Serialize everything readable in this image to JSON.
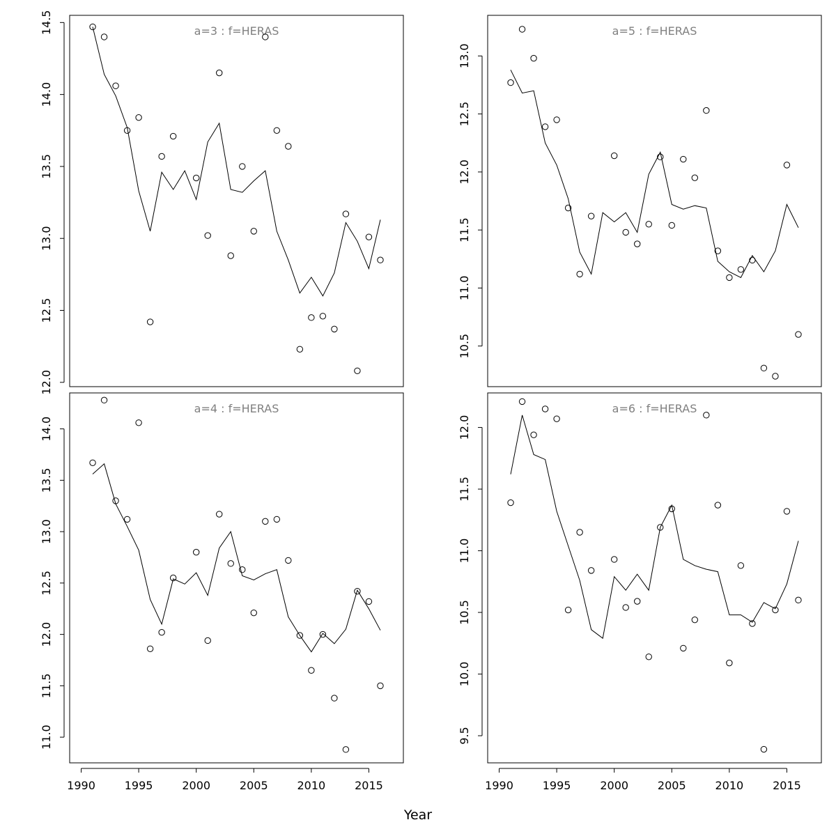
{
  "xlabel": "Year",
  "x_ticks": [
    1990,
    1995,
    2000,
    2005,
    2010,
    2015
  ],
  "chart_data": [
    {
      "type": "scatter",
      "title": "a=3  :  f=HERAS",
      "xlim": [
        1989,
        2018
      ],
      "ylim": [
        11.97,
        14.55
      ],
      "y_ticks": [
        12.0,
        12.5,
        13.0,
        13.5,
        14.0,
        14.5
      ],
      "x": [
        1991,
        1992,
        1993,
        1994,
        1995,
        1996,
        1997,
        1998,
        1999,
        2000,
        2001,
        2002,
        2003,
        2004,
        2005,
        2006,
        2007,
        2008,
        2009,
        2010,
        2011,
        2012,
        2013,
        2014,
        2015,
        2016
      ],
      "points": [
        14.47,
        14.4,
        14.06,
        13.75,
        13.84,
        12.42,
        13.57,
        13.71,
        null,
        13.42,
        13.02,
        14.15,
        12.88,
        13.5,
        13.05,
        14.4,
        13.75,
        13.64,
        12.23,
        12.45,
        12.46,
        12.37,
        13.17,
        12.08,
        13.01,
        12.85
      ],
      "fitted": [
        14.47,
        14.14,
        13.99,
        13.77,
        13.33,
        13.05,
        13.46,
        13.34,
        13.47,
        13.27,
        13.67,
        13.8,
        13.34,
        13.32,
        13.4,
        13.47,
        13.05,
        12.85,
        12.62,
        12.73,
        12.6,
        12.76,
        13.11,
        12.98,
        12.79,
        13.13
      ]
    },
    {
      "type": "scatter",
      "title": "a=5  :  f=HERAS",
      "xlim": [
        1989,
        2018
      ],
      "ylim": [
        10.15,
        13.35
      ],
      "y_ticks": [
        10.5,
        11.0,
        11.5,
        12.0,
        12.5,
        13.0
      ],
      "x": [
        1991,
        1992,
        1993,
        1994,
        1995,
        1996,
        1997,
        1998,
        1999,
        2000,
        2001,
        2002,
        2003,
        2004,
        2005,
        2006,
        2007,
        2008,
        2009,
        2010,
        2011,
        2012,
        2013,
        2014,
        2015,
        2016
      ],
      "points": [
        12.77,
        13.23,
        12.98,
        12.39,
        12.45,
        11.69,
        11.12,
        11.62,
        null,
        12.14,
        11.48,
        11.38,
        11.55,
        12.13,
        11.54,
        12.11,
        11.95,
        12.53,
        11.32,
        11.09,
        11.16,
        11.24,
        10.31,
        10.24,
        12.06,
        10.6
      ],
      "fitted": [
        12.88,
        12.68,
        12.7,
        12.25,
        12.06,
        11.77,
        11.31,
        11.12,
        11.65,
        11.57,
        11.65,
        11.48,
        11.98,
        12.17,
        11.72,
        11.68,
        11.71,
        11.69,
        11.23,
        11.14,
        11.09,
        11.28,
        11.14,
        11.32,
        11.72,
        11.52
      ]
    },
    {
      "type": "scatter",
      "title": "a=4  :  f=HERAS",
      "xlim": [
        1989,
        2018
      ],
      "ylim": [
        10.75,
        14.35
      ],
      "y_ticks": [
        11.0,
        11.5,
        12.0,
        12.5,
        13.0,
        13.5,
        14.0
      ],
      "x": [
        1991,
        1992,
        1993,
        1994,
        1995,
        1996,
        1997,
        1998,
        1999,
        2000,
        2001,
        2002,
        2003,
        2004,
        2005,
        2006,
        2007,
        2008,
        2009,
        2010,
        2011,
        2012,
        2013,
        2014,
        2015,
        2016
      ],
      "points": [
        13.67,
        14.28,
        13.3,
        13.12,
        14.06,
        11.86,
        12.02,
        12.55,
        null,
        12.8,
        11.94,
        13.17,
        12.69,
        12.63,
        12.21,
        13.1,
        13.12,
        12.72,
        11.99,
        11.65,
        12.0,
        11.38,
        10.88,
        12.42,
        12.32,
        11.5
      ],
      "fitted": [
        13.56,
        13.66,
        13.27,
        13.05,
        12.82,
        12.34,
        12.1,
        12.54,
        12.49,
        12.6,
        12.38,
        12.84,
        13.0,
        12.57,
        12.53,
        12.59,
        12.63,
        12.17,
        11.99,
        11.83,
        12.01,
        11.91,
        12.05,
        12.43,
        12.25,
        12.04
      ]
    },
    {
      "type": "scatter",
      "title": "a=6  :  f=HERAS",
      "xlim": [
        1989,
        2018
      ],
      "ylim": [
        9.28,
        12.28
      ],
      "y_ticks": [
        9.5,
        10.0,
        10.5,
        11.0,
        11.5,
        12.0
      ],
      "x": [
        1991,
        1992,
        1993,
        1994,
        1995,
        1996,
        1997,
        1998,
        1999,
        2000,
        2001,
        2002,
        2003,
        2004,
        2005,
        2006,
        2007,
        2008,
        2009,
        2010,
        2011,
        2012,
        2013,
        2014,
        2015,
        2016
      ],
      "points": [
        11.39,
        12.21,
        11.94,
        12.15,
        12.07,
        10.52,
        11.15,
        10.84,
        null,
        10.93,
        10.54,
        10.59,
        10.14,
        11.19,
        11.34,
        10.21,
        10.44,
        12.1,
        11.37,
        10.09,
        10.88,
        10.41,
        9.39,
        10.52,
        11.32,
        10.6
      ],
      "fitted": [
        11.62,
        12.1,
        11.78,
        11.74,
        11.32,
        11.04,
        10.76,
        10.36,
        10.29,
        10.79,
        10.68,
        10.81,
        10.68,
        11.19,
        11.37,
        10.93,
        10.88,
        10.85,
        10.83,
        10.48,
        10.48,
        10.42,
        10.58,
        10.53,
        10.73,
        11.08
      ]
    }
  ]
}
